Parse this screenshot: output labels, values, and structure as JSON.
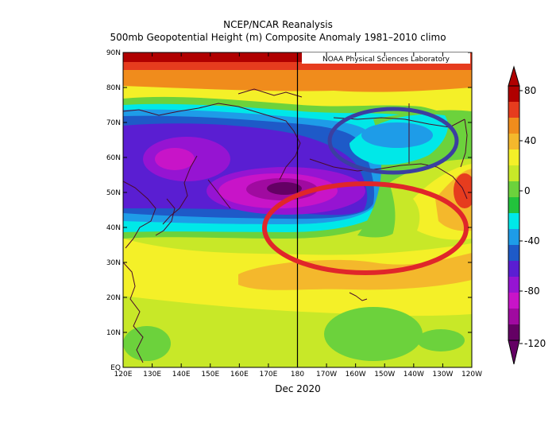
{
  "header": {
    "title": "NCEP/NCAR Reanalysis",
    "subtitle": "500mb Geopotential Height (m) Composite Anomaly 1981–2010 climo"
  },
  "map": {
    "credit": "NOAA Physical Sciences Laboratory",
    "xlabel": "Dec 2020",
    "lat_ticks": [
      "EQ",
      "10N",
      "20N",
      "30N",
      "40N",
      "50N",
      "60N",
      "70N",
      "80N",
      "90N"
    ],
    "lon_ticks": [
      "120E",
      "130E",
      "140E",
      "150E",
      "160E",
      "170E",
      "180",
      "170W",
      "160W",
      "150W",
      "140W",
      "130W",
      "120W"
    ],
    "lat_range": [
      0,
      90
    ],
    "lon_range": [
      "120E",
      "120W"
    ],
    "meridian_line": "180",
    "annotations": [
      {
        "shape": "ellipse",
        "color": "#3b3fa0",
        "region": "Alaska / Bering Sea"
      },
      {
        "shape": "ellipse",
        "color": "#e0262a",
        "region": "NE Pacific"
      }
    ]
  },
  "colorbar": {
    "ticks": [
      "80",
      "40",
      "0",
      "-40",
      "-80",
      "-120"
    ],
    "colors": [
      "#b00000",
      "#e63c1e",
      "#f08c1c",
      "#f4b82c",
      "#f4f028",
      "#c8e828",
      "#6cd23c",
      "#22c33c",
      "#00e8e8",
      "#1e9ce8",
      "#1e5ac8",
      "#5a1ed2",
      "#9614d2",
      "#c814c8",
      "#a00aa0",
      "#640064"
    ]
  }
}
